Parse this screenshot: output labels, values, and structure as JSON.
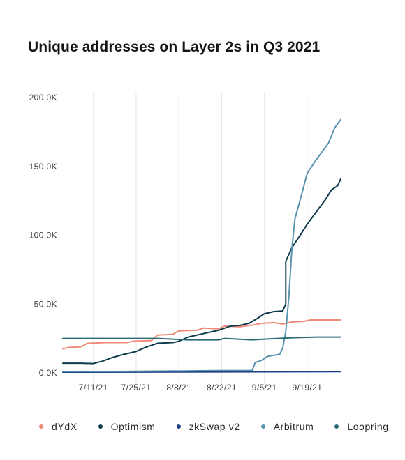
{
  "chart_data": {
    "type": "line",
    "title": "Unique addresses on Layer 2s in Q3 2021",
    "xlabel": "",
    "ylabel": "",
    "x_range": [
      "2021-07-01",
      "2021-09-30"
    ],
    "x_ticks": [
      "7/11/21",
      "7/25/21",
      "8/8/21",
      "8/22/21",
      "9/5/21",
      "9/19/21"
    ],
    "x_tick_dates": [
      "2021-07-11",
      "2021-07-25",
      "2021-08-08",
      "2021-08-22",
      "2021-09-05",
      "2021-09-19"
    ],
    "ylim": [
      0,
      200000
    ],
    "y_ticks": [
      "0.0K",
      "50.0K",
      "100.0K",
      "150.0K",
      "200.0K"
    ],
    "y_tick_values": [
      0,
      50000,
      100000,
      150000,
      200000
    ],
    "grid": "vertical",
    "legend_position": "bottom",
    "series": [
      {
        "name": "dYdX",
        "color": "#f08a78",
        "points": [
          [
            "2021-07-01",
            17500
          ],
          [
            "2021-07-03",
            18500
          ],
          [
            "2021-07-07",
            19000
          ],
          [
            "2021-07-09",
            21500
          ],
          [
            "2021-07-15",
            22000
          ],
          [
            "2021-07-22",
            22000
          ],
          [
            "2021-07-24",
            23000
          ],
          [
            "2021-07-30",
            23500
          ],
          [
            "2021-08-01",
            27500
          ],
          [
            "2021-08-06",
            28000
          ],
          [
            "2021-08-08",
            30500
          ],
          [
            "2021-08-14",
            31000
          ],
          [
            "2021-08-16",
            32500
          ],
          [
            "2021-08-21",
            32000
          ],
          [
            "2021-08-23",
            34000
          ],
          [
            "2021-08-28",
            33500
          ],
          [
            "2021-08-31",
            34500
          ],
          [
            "2021-09-02",
            35000
          ],
          [
            "2021-09-04",
            36000
          ],
          [
            "2021-09-08",
            36500
          ],
          [
            "2021-09-11",
            35500
          ],
          [
            "2021-09-14",
            37000
          ],
          [
            "2021-09-18",
            37500
          ],
          [
            "2021-09-20",
            38500
          ],
          [
            "2021-09-30",
            38500
          ]
        ]
      },
      {
        "name": "Optimism",
        "color": "#0d3b4c",
        "points": [
          [
            "2021-07-01",
            7000
          ],
          [
            "2021-07-07",
            7000
          ],
          [
            "2021-07-11",
            6800
          ],
          [
            "2021-07-14",
            8500
          ],
          [
            "2021-07-17",
            11000
          ],
          [
            "2021-07-21",
            13500
          ],
          [
            "2021-07-25",
            15500
          ],
          [
            "2021-07-28",
            18500
          ],
          [
            "2021-08-01",
            21500
          ],
          [
            "2021-08-06",
            22000
          ],
          [
            "2021-08-08",
            23000
          ],
          [
            "2021-08-11",
            26000
          ],
          [
            "2021-08-16",
            28500
          ],
          [
            "2021-08-21",
            31000
          ],
          [
            "2021-08-25",
            34000
          ],
          [
            "2021-08-28",
            34500
          ],
          [
            "2021-08-31",
            36000
          ],
          [
            "2021-09-03",
            40000
          ],
          [
            "2021-09-05",
            43000
          ],
          [
            "2021-09-08",
            44500
          ],
          [
            "2021-09-11",
            45000
          ],
          [
            "2021-09-12",
            50000
          ],
          [
            "2021-09-12",
            81000
          ],
          [
            "2021-09-14",
            91000
          ],
          [
            "2021-09-17",
            101000
          ],
          [
            "2021-09-19",
            108000
          ],
          [
            "2021-09-21",
            114000
          ],
          [
            "2021-09-23",
            120000
          ],
          [
            "2021-09-25",
            126000
          ],
          [
            "2021-09-27",
            133000
          ],
          [
            "2021-09-29",
            136000
          ],
          [
            "2021-09-30",
            141000
          ]
        ]
      },
      {
        "name": "zkSwap v2",
        "color": "#1f3f86",
        "points": [
          [
            "2021-07-01",
            500
          ],
          [
            "2021-08-22",
            700
          ],
          [
            "2021-09-30",
            900
          ]
        ]
      },
      {
        "name": "Arbitrum",
        "color": "#5a93ad",
        "points": [
          [
            "2021-07-01",
            1000
          ],
          [
            "2021-07-21",
            1100
          ],
          [
            "2021-08-10",
            1400
          ],
          [
            "2021-08-22",
            1700
          ],
          [
            "2021-09-01",
            1800
          ],
          [
            "2021-09-02",
            7500
          ],
          [
            "2021-09-04",
            9000
          ],
          [
            "2021-09-06",
            12000
          ],
          [
            "2021-09-10",
            13500
          ],
          [
            "2021-09-11",
            18000
          ],
          [
            "2021-09-12",
            30000
          ],
          [
            "2021-09-13",
            55000
          ],
          [
            "2021-09-14",
            90000
          ],
          [
            "2021-09-15",
            112000
          ],
          [
            "2021-09-17",
            128000
          ],
          [
            "2021-09-19",
            145000
          ],
          [
            "2021-09-22",
            155000
          ],
          [
            "2021-09-26",
            167000
          ],
          [
            "2021-09-28",
            178000
          ],
          [
            "2021-09-30",
            184000
          ]
        ]
      },
      {
        "name": "Loopring",
        "color": "#2b6b78",
        "points": [
          [
            "2021-07-01",
            25000
          ],
          [
            "2021-08-01",
            25000
          ],
          [
            "2021-08-11",
            24000
          ],
          [
            "2021-08-21",
            24000
          ],
          [
            "2021-08-23",
            25000
          ],
          [
            "2021-09-01",
            24000
          ],
          [
            "2021-09-05",
            24500
          ],
          [
            "2021-09-14",
            25500
          ],
          [
            "2021-09-22",
            26000
          ],
          [
            "2021-09-30",
            26000
          ]
        ]
      }
    ]
  }
}
